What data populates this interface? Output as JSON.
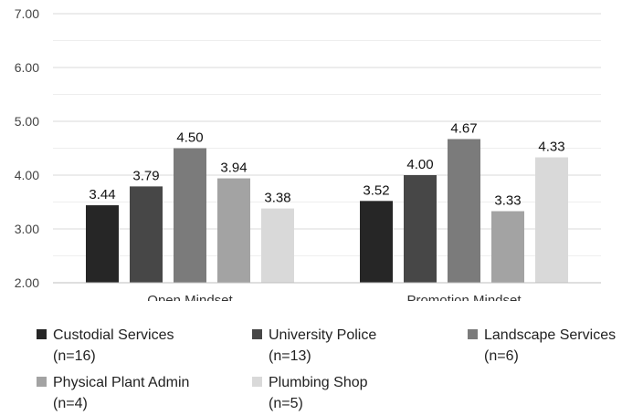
{
  "chart_data": {
    "type": "bar",
    "categories": [
      "Open Mindset",
      "Promotion Mindset"
    ],
    "series": [
      {
        "name": "Custodial Services",
        "name_line2": "(n=16)",
        "color": "#262626",
        "values": [
          3.44,
          3.52
        ]
      },
      {
        "name": "University Police",
        "name_line2": "(n=13)",
        "color": "#474747",
        "values": [
          3.79,
          4.0
        ]
      },
      {
        "name": "Landscape Services",
        "name_line2": "(n=6)",
        "color": "#7b7b7b",
        "values": [
          4.5,
          4.67
        ]
      },
      {
        "name": "Physical Plant Admin",
        "name_line2": "(n=4)",
        "color": "#a3a3a3",
        "values": [
          3.94,
          3.33
        ]
      },
      {
        "name": "Plumbing Shop",
        "name_line2": "(n=5)",
        "color": "#d9d9d9",
        "values": [
          3.38,
          4.33
        ]
      }
    ],
    "value_labels": [
      [
        "3.44",
        "3.52"
      ],
      [
        "3.79",
        "4.00"
      ],
      [
        "4.50",
        "4.67"
      ],
      [
        "3.94",
        "3.33"
      ],
      [
        "3.38",
        "4.33"
      ]
    ],
    "y_ticks": [
      "2.00",
      "3.00",
      "4.00",
      "5.00",
      "6.00",
      "7.00"
    ],
    "ylim": [
      2,
      7
    ],
    "title": "",
    "xlabel": "",
    "ylabel": "",
    "grid": true,
    "legend_position": "bottom"
  }
}
